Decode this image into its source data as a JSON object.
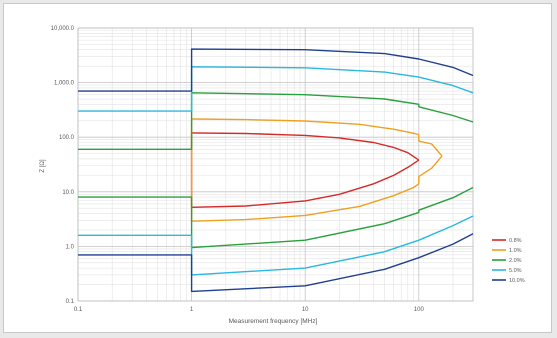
{
  "chart_data": {
    "type": "line",
    "xlabel": "Measurement frequency [MHz]",
    "ylabel": "Z [Ω]",
    "x_scale": "log",
    "y_scale": "log",
    "xlim": [
      0.1,
      300
    ],
    "ylim": [
      0.1,
      10000
    ],
    "x_ticks": [
      "0.1",
      "1",
      "10",
      "100"
    ],
    "y_ticks": [
      "0.1",
      "1.0",
      "10.0",
      "100.0",
      "1,000.0",
      "10,000.0"
    ],
    "grid": true,
    "legend_position": "right",
    "series": [
      {
        "name": "0.8%",
        "color": "#d42a2a",
        "upper": [
          [
            1,
            120
          ],
          [
            3,
            117
          ],
          [
            10,
            108
          ],
          [
            20,
            97
          ],
          [
            40,
            80
          ],
          [
            60,
            65
          ],
          [
            80,
            52
          ],
          [
            100,
            38
          ]
        ],
        "lower": [
          [
            1,
            5.2
          ],
          [
            3,
            5.5
          ],
          [
            10,
            6.8
          ],
          [
            20,
            9.0
          ],
          [
            40,
            14
          ],
          [
            60,
            20
          ],
          [
            80,
            28
          ],
          [
            100,
            38
          ]
        ]
      },
      {
        "name": "1.0%",
        "color": "#f0a020",
        "upper": [
          [
            1,
            215
          ],
          [
            3,
            210
          ],
          [
            10,
            198
          ],
          [
            30,
            172
          ],
          [
            60,
            140
          ],
          [
            90,
            118
          ],
          [
            100,
            112
          ],
          [
            100,
            85
          ],
          [
            130,
            75
          ],
          [
            160,
            45
          ]
        ],
        "lower": [
          [
            1,
            2.9
          ],
          [
            3,
            3.1
          ],
          [
            10,
            3.7
          ],
          [
            30,
            5.4
          ],
          [
            60,
            8.5
          ],
          [
            90,
            12
          ],
          [
            100,
            14
          ],
          [
            100,
            19
          ],
          [
            130,
            27
          ],
          [
            160,
            45
          ]
        ]
      },
      {
        "name": "2.0%",
        "color": "#28a03c",
        "upper": [
          [
            0.1,
            60
          ],
          [
            1,
            60
          ],
          [
            1,
            650
          ],
          [
            10,
            600
          ],
          [
            50,
            500
          ],
          [
            100,
            400
          ],
          [
            100,
            360
          ],
          [
            200,
            250
          ],
          [
            300,
            190
          ]
        ],
        "lower": [
          [
            0.1,
            8
          ],
          [
            1,
            8
          ],
          [
            1,
            0.95
          ],
          [
            10,
            1.3
          ],
          [
            50,
            2.6
          ],
          [
            100,
            4.2
          ],
          [
            100,
            4.6
          ],
          [
            200,
            7.8
          ],
          [
            300,
            12
          ]
        ]
      },
      {
        "name": "5.0%",
        "color": "#28b8e0",
        "upper": [
          [
            0.1,
            300
          ],
          [
            1,
            300
          ],
          [
            1,
            1950
          ],
          [
            10,
            1870
          ],
          [
            50,
            1560
          ],
          [
            100,
            1260
          ],
          [
            200,
            880
          ],
          [
            300,
            650
          ]
        ],
        "lower": [
          [
            0.1,
            1.6
          ],
          [
            1,
            1.6
          ],
          [
            1,
            0.3
          ],
          [
            10,
            0.4
          ],
          [
            50,
            0.8
          ],
          [
            100,
            1.3
          ],
          [
            200,
            2.4
          ],
          [
            300,
            3.6
          ]
        ]
      },
      {
        "name": "10.0%",
        "color": "#1f3f8f",
        "upper": [
          [
            0.1,
            700
          ],
          [
            1,
            700
          ],
          [
            1,
            4100
          ],
          [
            10,
            4000
          ],
          [
            50,
            3400
          ],
          [
            100,
            2700
          ],
          [
            200,
            1900
          ],
          [
            300,
            1350
          ]
        ],
        "lower": [
          [
            0.1,
            0.7
          ],
          [
            1,
            0.7
          ],
          [
            1,
            0.15
          ],
          [
            10,
            0.19
          ],
          [
            50,
            0.38
          ],
          [
            100,
            0.62
          ],
          [
            200,
            1.1
          ],
          [
            300,
            1.7
          ]
        ]
      }
    ]
  }
}
